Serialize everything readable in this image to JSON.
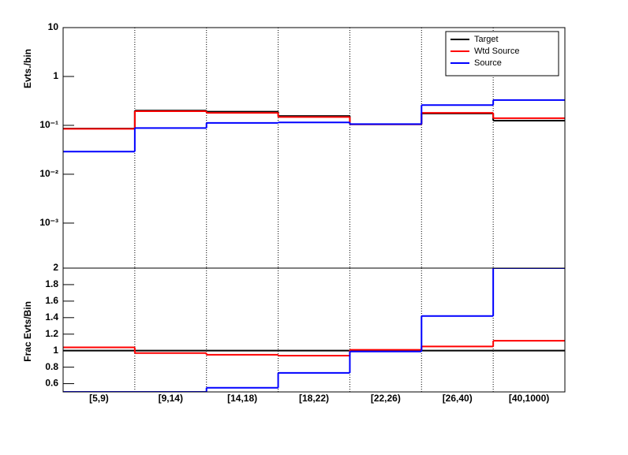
{
  "chart_data": [
    {
      "type": "step",
      "y_label": "Evts./bin",
      "log_y": true,
      "ylim": [
        0.00012,
        10
      ],
      "yticks": [
        10,
        1,
        {
          "value": 0.1,
          "label": "10⁻¹"
        },
        {
          "value": 0.01,
          "label": "10⁻²"
        },
        {
          "value": 0.001,
          "label": "10⁻³"
        }
      ],
      "x_grid": true,
      "legend": "top-right",
      "series": [
        {
          "name": "Target",
          "color": "#000000",
          "values": [
            0.086,
            0.2,
            0.19,
            0.155,
            0.105,
            0.175,
            0.125
          ]
        },
        {
          "name": "Wtd Source",
          "color": "#ff0000",
          "values": [
            0.085,
            0.195,
            0.18,
            0.148,
            0.105,
            0.18,
            0.14
          ]
        },
        {
          "name": "Source",
          "color": "#0000ff",
          "values": [
            0.029,
            0.088,
            0.112,
            0.115,
            0.106,
            0.26,
            0.33
          ]
        }
      ]
    },
    {
      "type": "step",
      "y_label": "Frac Evts/Bin",
      "log_y": false,
      "ylim": [
        0.5,
        2
      ],
      "yticks": [
        0.6,
        0.8,
        1,
        1.2,
        1.4,
        1.6,
        1.8,
        2
      ],
      "x_grid": true,
      "categories": [
        "[5,9)",
        "[9,14)",
        "[14,18)",
        "[18,22)",
        "[22,26)",
        "[26,40)",
        "[40,1000)"
      ],
      "series": [
        {
          "name": "Target",
          "color": "#000000",
          "values": [
            1,
            1,
            1,
            1,
            1,
            1,
            1
          ]
        },
        {
          "name": "Wtd Source",
          "color": "#ff0000",
          "values": [
            1.04,
            0.97,
            0.95,
            0.94,
            1.01,
            1.05,
            1.12
          ]
        },
        {
          "name": "Source",
          "color": "#0000ff",
          "values": [
            0.5,
            0.5,
            0.55,
            0.73,
            0.99,
            1.42,
            2
          ]
        }
      ]
    }
  ]
}
